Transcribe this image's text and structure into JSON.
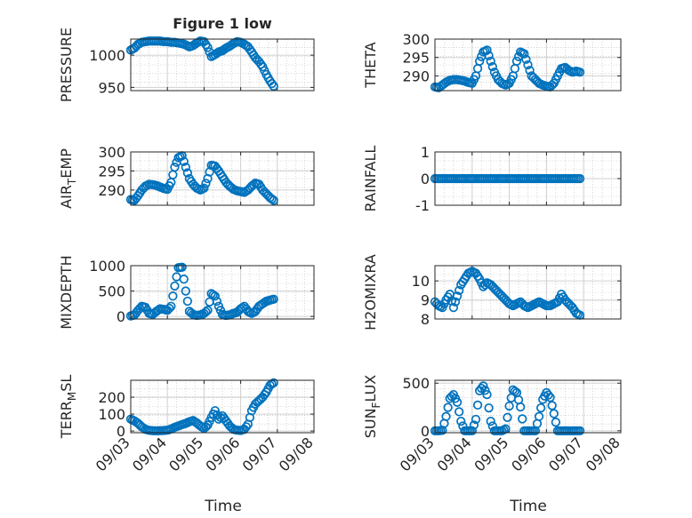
{
  "figure": {
    "xlabel_left": "Time",
    "xlabel_right": "Time"
  },
  "chart_data": [
    {
      "type": "scatter",
      "panel": "pressure",
      "title": "Figure 1 low",
      "ylabel": "PRESSURE",
      "ylim": [
        945,
        1025
      ],
      "yticks": [
        950,
        1000
      ],
      "ytick_labels": [
        "950",
        "1000"
      ],
      "xlim": [
        0,
        5
      ],
      "xticks": [],
      "xtick_labels": [],
      "marker_color": "#0072BD",
      "grid": true,
      "x": [
        0,
        0.1,
        0.2,
        0.3,
        0.4,
        0.5,
        0.6,
        0.7,
        0.8,
        0.9,
        1.0,
        1.1,
        1.2,
        1.3,
        1.4,
        1.5,
        1.6,
        1.7,
        1.8,
        1.9,
        2.0,
        2.1,
        2.2,
        2.3,
        2.4,
        2.5,
        2.6,
        2.7,
        2.8,
        2.9,
        3.0,
        3.1,
        3.2,
        3.3,
        3.4,
        3.5,
        3.6,
        3.7,
        3.8,
        3.9
      ],
      "y": [
        1008,
        1011,
        1017,
        1020,
        1021,
        1022,
        1022,
        1022,
        1022,
        1021,
        1021,
        1020,
        1020,
        1019,
        1018,
        1016,
        1013,
        1015,
        1019,
        1022,
        1021,
        1012,
        998,
        1001,
        1005,
        1007,
        1011,
        1014,
        1018,
        1021,
        1020,
        1017,
        1013,
        1005,
        996,
        990,
        982,
        970,
        960,
        952
      ]
    },
    {
      "type": "scatter",
      "panel": "theta",
      "ylabel": "THETA",
      "ylim": [
        286,
        300
      ],
      "yticks": [
        290,
        295,
        300
      ],
      "ytick_labels": [
        "290",
        "295",
        "300"
      ],
      "xlim": [
        0,
        5
      ],
      "xticks": [],
      "xtick_labels": [],
      "marker_color": "#0072BD",
      "grid": true,
      "x": [
        0,
        0.1,
        0.2,
        0.3,
        0.4,
        0.5,
        0.6,
        0.7,
        0.8,
        0.9,
        1.0,
        1.1,
        1.2,
        1.3,
        1.4,
        1.5,
        1.6,
        1.7,
        1.8,
        1.9,
        2.0,
        2.1,
        2.2,
        2.3,
        2.4,
        2.5,
        2.6,
        2.7,
        2.8,
        2.9,
        3.0,
        3.1,
        3.2,
        3.3,
        3.4,
        3.5,
        3.6,
        3.7,
        3.8,
        3.9
      ],
      "y": [
        287,
        286.8,
        287.5,
        288.3,
        288.8,
        289,
        289,
        288.8,
        288.6,
        288.2,
        288,
        290,
        294,
        296.5,
        297,
        294,
        291,
        289,
        288,
        287.5,
        288,
        290,
        294,
        296.5,
        296,
        293,
        290,
        289,
        288,
        287.5,
        287.2,
        287,
        288,
        290,
        292,
        292.3,
        291.5,
        291,
        291.3,
        291
      ]
    },
    {
      "type": "scatter",
      "panel": "air_temp",
      "ylabel": "AIR",
      "ylabel_subscript": "T",
      "ylabel_suffix": "EMP",
      "ylim": [
        286,
        300
      ],
      "yticks": [
        290,
        295,
        300
      ],
      "ytick_labels": [
        "290",
        "295",
        "300"
      ],
      "xlim": [
        0,
        5
      ],
      "xticks": [],
      "xtick_labels": [],
      "marker_color": "#0072BD",
      "grid": true,
      "x": [
        0,
        0.1,
        0.2,
        0.3,
        0.4,
        0.5,
        0.6,
        0.7,
        0.8,
        0.9,
        1.0,
        1.1,
        1.2,
        1.3,
        1.4,
        1.5,
        1.6,
        1.7,
        1.8,
        1.9,
        2.0,
        2.1,
        2.2,
        2.3,
        2.4,
        2.5,
        2.6,
        2.7,
        2.8,
        2.9,
        3.0,
        3.1,
        3.2,
        3.3,
        3.4,
        3.5,
        3.6,
        3.7,
        3.8,
        3.9
      ],
      "y": [
        287.5,
        287.3,
        288.5,
        290,
        291,
        291.5,
        291.4,
        291.2,
        290.8,
        290.4,
        290.2,
        292,
        296,
        298.5,
        299,
        296,
        293,
        291.5,
        290.5,
        290,
        290.5,
        293,
        296.5,
        296.3,
        295,
        293.5,
        292,
        291,
        290.2,
        289.8,
        289.6,
        289.4,
        290,
        291,
        291.8,
        291.5,
        290,
        289,
        288,
        287.3
      ]
    },
    {
      "type": "scatter",
      "panel": "rainfall",
      "ylabel": "RAINFALL",
      "ylim": [
        -1,
        1
      ],
      "yticks": [
        -1,
        0,
        1
      ],
      "ytick_labels": [
        "-1",
        "0",
        "1"
      ],
      "xlim": [
        0,
        5
      ],
      "xticks": [],
      "xtick_labels": [],
      "marker_color": "#0072BD",
      "grid": true,
      "x": [
        0,
        0.1,
        0.2,
        0.3,
        0.4,
        0.5,
        0.6,
        0.7,
        0.8,
        0.9,
        1.0,
        1.1,
        1.2,
        1.3,
        1.4,
        1.5,
        1.6,
        1.7,
        1.8,
        1.9,
        2.0,
        2.1,
        2.2,
        2.3,
        2.4,
        2.5,
        2.6,
        2.7,
        2.8,
        2.9,
        3.0,
        3.1,
        3.2,
        3.3,
        3.4,
        3.5,
        3.6,
        3.7,
        3.8,
        3.9
      ],
      "y": [
        0,
        0,
        0,
        0,
        0,
        0,
        0,
        0,
        0,
        0,
        0,
        0,
        0,
        0,
        0,
        0,
        0,
        0,
        0,
        0,
        0,
        0,
        0,
        0,
        0,
        0,
        0,
        0,
        0,
        0,
        0,
        0,
        0,
        0,
        0,
        0,
        0,
        0,
        0,
        0
      ]
    },
    {
      "type": "scatter",
      "panel": "mixdepth",
      "ylabel": "MIXDEPTH",
      "ylim": [
        -50,
        1000
      ],
      "yticks": [
        0,
        500,
        1000
      ],
      "ytick_labels": [
        "0",
        "500",
        "1000"
      ],
      "xlim": [
        0,
        5
      ],
      "xticks": [],
      "xtick_labels": [],
      "marker_color": "#0072BD",
      "grid": true,
      "x": [
        0,
        0.1,
        0.2,
        0.3,
        0.4,
        0.5,
        0.6,
        0.7,
        0.8,
        0.9,
        1.0,
        1.1,
        1.2,
        1.3,
        1.4,
        1.5,
        1.6,
        1.7,
        1.8,
        1.9,
        2.0,
        2.1,
        2.2,
        2.3,
        2.4,
        2.5,
        2.6,
        2.7,
        2.8,
        2.9,
        3.0,
        3.1,
        3.2,
        3.3,
        3.4,
        3.5,
        3.6,
        3.7,
        3.8,
        3.9
      ],
      "y": [
        10,
        30,
        120,
        200,
        180,
        60,
        40,
        100,
        150,
        140,
        120,
        200,
        600,
        960,
        970,
        500,
        100,
        40,
        20,
        30,
        60,
        120,
        450,
        400,
        200,
        40,
        20,
        30,
        60,
        80,
        150,
        200,
        100,
        60,
        100,
        200,
        250,
        300,
        320,
        340
      ]
    },
    {
      "type": "scatter",
      "panel": "h2omixra",
      "ylabel": "H2OMIXRA",
      "ylim": [
        8,
        10.8
      ],
      "yticks": [
        8,
        9,
        10
      ],
      "ytick_labels": [
        "8",
        "9",
        "10"
      ],
      "xlim": [
        0,
        5
      ],
      "xticks": [],
      "xtick_labels": [],
      "marker_color": "#0072BD",
      "grid": true,
      "x": [
        0,
        0.1,
        0.2,
        0.3,
        0.4,
        0.5,
        0.6,
        0.7,
        0.8,
        0.9,
        1.0,
        1.1,
        1.2,
        1.3,
        1.4,
        1.5,
        1.6,
        1.7,
        1.8,
        1.9,
        2.0,
        2.1,
        2.2,
        2.3,
        2.4,
        2.5,
        2.6,
        2.7,
        2.8,
        2.9,
        3.0,
        3.1,
        3.2,
        3.3,
        3.4,
        3.5,
        3.6,
        3.7,
        3.8,
        3.9
      ],
      "y": [
        8.9,
        8.7,
        8.6,
        9.0,
        9.3,
        8.6,
        9.2,
        9.8,
        10.1,
        10.4,
        10.5,
        10.4,
        10.1,
        9.7,
        9.9,
        9.8,
        9.6,
        9.4,
        9.2,
        9.0,
        8.8,
        8.7,
        8.8,
        8.9,
        8.7,
        8.6,
        8.7,
        8.8,
        8.9,
        8.8,
        8.7,
        8.7,
        8.8,
        8.9,
        9.3,
        9.0,
        8.8,
        8.6,
        8.3,
        8.2
      ]
    },
    {
      "type": "scatter",
      "panel": "terr_msl",
      "ylabel": "TERR",
      "ylabel_subscript": "M",
      "ylabel_suffix": "SL",
      "ylim": [
        -10,
        300
      ],
      "yticks": [
        0,
        100,
        200
      ],
      "ytick_labels": [
        "0",
        "100",
        "200"
      ],
      "xlim": [
        0,
        5
      ],
      "xticks": [
        0,
        1,
        2,
        3,
        4,
        5
      ],
      "xtick_labels": [
        "09/03",
        "09/04",
        "09/05",
        "09/06",
        "09/07",
        "09/08"
      ],
      "marker_color": "#0072BD",
      "grid": true,
      "x": [
        0,
        0.1,
        0.2,
        0.3,
        0.4,
        0.5,
        0.6,
        0.7,
        0.8,
        0.9,
        1.0,
        1.1,
        1.2,
        1.3,
        1.4,
        1.5,
        1.6,
        1.7,
        1.8,
        1.9,
        2.0,
        2.1,
        2.2,
        2.3,
        2.4,
        2.5,
        2.6,
        2.7,
        2.8,
        2.9,
        3.0,
        3.1,
        3.2,
        3.3,
        3.4,
        3.5,
        3.6,
        3.7,
        3.8,
        3.9
      ],
      "y": [
        70,
        60,
        45,
        25,
        10,
        4,
        2,
        1,
        2,
        3,
        5,
        12,
        22,
        30,
        38,
        45,
        55,
        62,
        48,
        30,
        15,
        35,
        80,
        120,
        70,
        90,
        60,
        30,
        10,
        5,
        3,
        10,
        40,
        120,
        160,
        180,
        200,
        230,
        270,
        285
      ]
    },
    {
      "type": "scatter",
      "panel": "sun_flux",
      "ylabel": "SUN",
      "ylabel_subscript": "F",
      "ylabel_suffix": "LUX",
      "ylim": [
        -20,
        530
      ],
      "yticks": [
        0,
        500
      ],
      "ytick_labels": [
        "0",
        "500"
      ],
      "xlim": [
        0,
        5
      ],
      "xticks": [
        0,
        1,
        2,
        3,
        4,
        5
      ],
      "xtick_labels": [
        "09/03",
        "09/04",
        "09/05",
        "09/06",
        "09/07",
        "09/08"
      ],
      "marker_color": "#0072BD",
      "grid": true,
      "x": [
        0,
        0.1,
        0.2,
        0.3,
        0.4,
        0.5,
        0.6,
        0.7,
        0.8,
        0.9,
        1.0,
        1.1,
        1.2,
        1.3,
        1.4,
        1.5,
        1.6,
        1.7,
        1.8,
        1.9,
        2.0,
        2.1,
        2.2,
        2.3,
        2.4,
        2.5,
        2.6,
        2.7,
        2.8,
        2.9,
        3.0,
        3.1,
        3.2,
        3.3,
        3.4,
        3.5,
        3.6,
        3.7,
        3.8,
        3.9
      ],
      "y": [
        0,
        0,
        5,
        150,
        340,
        380,
        300,
        100,
        0,
        0,
        0,
        120,
        420,
        470,
        380,
        100,
        0,
        0,
        0,
        20,
        260,
        430,
        400,
        250,
        0,
        0,
        0,
        0,
        150,
        330,
        400,
        350,
        180,
        0,
        0,
        0,
        0,
        0,
        0,
        0
      ]
    }
  ]
}
